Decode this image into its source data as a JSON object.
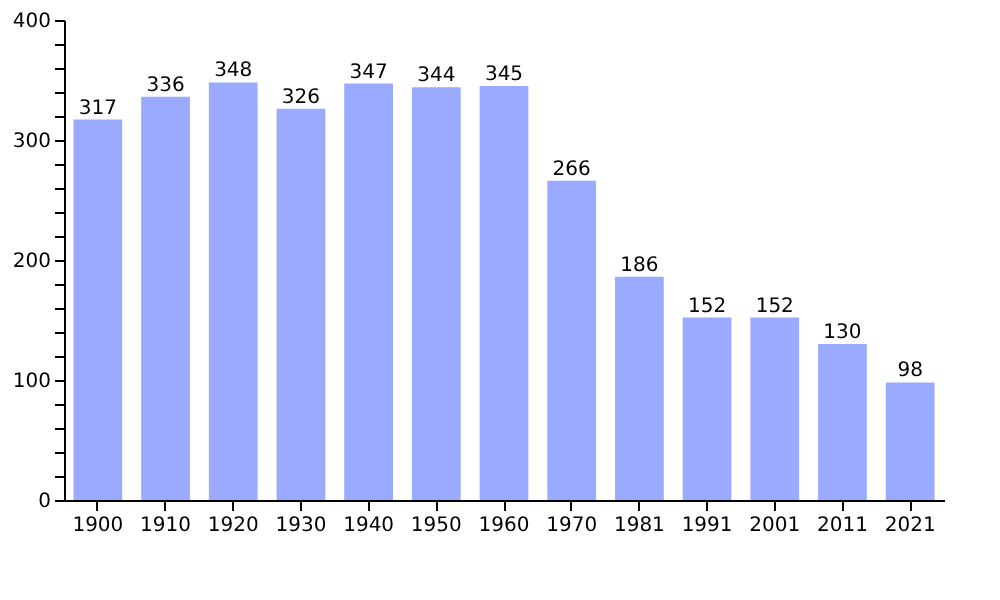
{
  "chart_data": {
    "type": "bar",
    "categories": [
      "1900",
      "1910",
      "1920",
      "1930",
      "1940",
      "1950",
      "1960",
      "1970",
      "1981",
      "1991",
      "2001",
      "2011",
      "2021"
    ],
    "values": [
      317,
      336,
      348,
      326,
      347,
      344,
      345,
      266,
      186,
      152,
      152,
      130,
      98
    ],
    "color": "#99aaff",
    "data_labels": true,
    "grid": false,
    "ylim": [
      0,
      400
    ],
    "yticks": [
      0,
      {
        "value": 20,
        "label": null
      },
      {
        "value": 40,
        "label": null
      },
      {
        "value": 60,
        "label": null
      },
      {
        "value": 80,
        "label": null
      },
      100,
      {
        "value": 120,
        "label": null
      },
      {
        "value": 140,
        "label": null
      },
      {
        "value": 160,
        "label": null
      },
      {
        "value": 180,
        "label": null
      },
      200,
      {
        "value": 220,
        "label": null
      },
      {
        "value": 240,
        "label": null
      },
      {
        "value": 260,
        "label": null
      },
      {
        "value": 280,
        "label": null
      },
      300,
      {
        "value": 320,
        "label": null
      },
      {
        "value": 340,
        "label": null
      },
      {
        "value": 360,
        "label": null
      },
      {
        "value": 380,
        "label": null
      },
      400
    ]
  }
}
